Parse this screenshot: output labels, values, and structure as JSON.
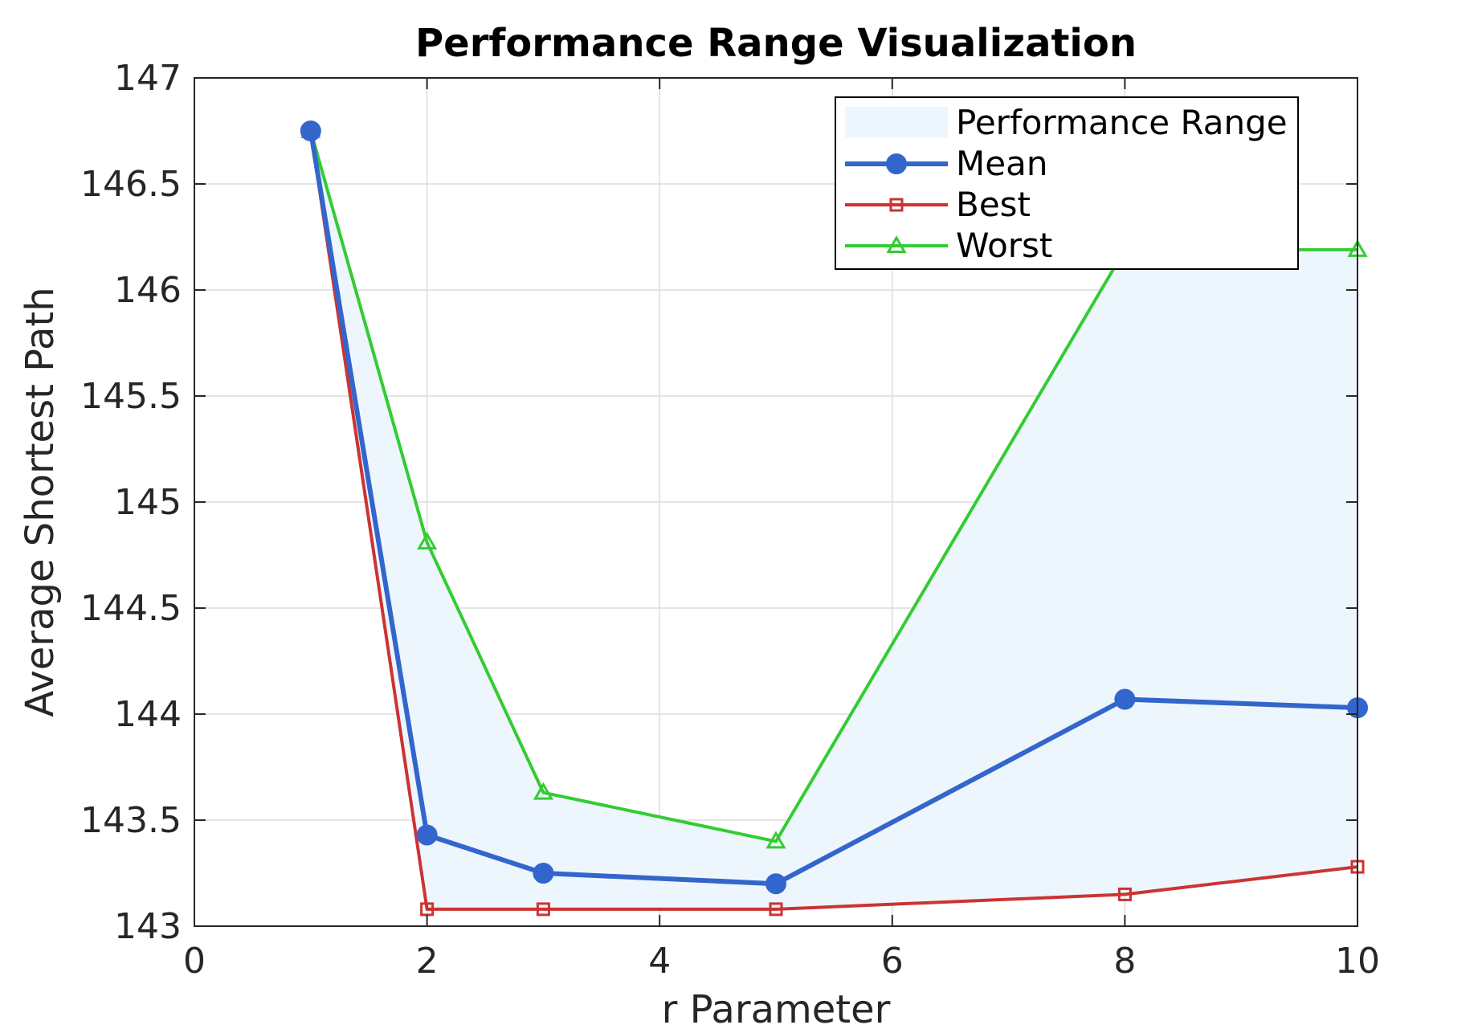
{
  "chart_data": {
    "type": "line",
    "title": "Performance Range Visualization",
    "xlabel": "r Parameter",
    "ylabel": "Average Shortest Path",
    "xlim": [
      0,
      10
    ],
    "ylim": [
      143,
      147
    ],
    "xticks": [
      0,
      2,
      4,
      6,
      8,
      10
    ],
    "yticks": [
      143,
      143.5,
      144,
      144.5,
      145,
      145.5,
      146,
      146.5,
      147
    ],
    "grid": true,
    "legend_position": "top-right",
    "x": [
      1,
      2,
      3,
      5,
      8,
      10
    ],
    "range": {
      "name": "Performance Range",
      "color": "#eef6fd"
    },
    "series": [
      {
        "name": "Mean",
        "color": "#3366cc",
        "marker": "circle",
        "values": [
          146.75,
          143.43,
          143.25,
          143.2,
          144.07,
          144.03
        ]
      },
      {
        "name": "Best",
        "color": "#cc3333",
        "marker": "square",
        "values": [
          146.75,
          143.08,
          143.08,
          143.08,
          143.15,
          143.28
        ]
      },
      {
        "name": "Worst",
        "color": "#33cc33",
        "marker": "triangle",
        "values": [
          146.75,
          144.81,
          143.63,
          143.4,
          146.19,
          146.19
        ]
      }
    ]
  }
}
